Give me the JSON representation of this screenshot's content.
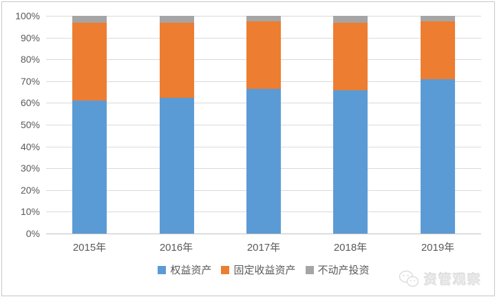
{
  "chart_data": {
    "type": "bar",
    "stacked": true,
    "percent_stacked": true,
    "title": "",
    "xlabel": "",
    "ylabel": "",
    "categories": [
      "2015年",
      "2016年",
      "2017年",
      "2018年",
      "2019年"
    ],
    "series": [
      {
        "name": "权益资产",
        "color": "#5b9bd5",
        "values": [
          61.0,
          62.5,
          66.5,
          66.0,
          71.0
        ]
      },
      {
        "name": "固定收益资产",
        "color": "#ed7d31",
        "values": [
          36.0,
          34.5,
          31.0,
          31.0,
          26.5
        ]
      },
      {
        "name": "不动产投资",
        "color": "#a5a5a5",
        "values": [
          3.0,
          3.0,
          2.5,
          3.0,
          2.5
        ]
      }
    ],
    "y_axis": {
      "min": 0,
      "max": 100,
      "step": 10,
      "tick_labels": [
        "0%",
        "10%",
        "20%",
        "30%",
        "40%",
        "50%",
        "60%",
        "70%",
        "80%",
        "90%",
        "100%"
      ]
    },
    "grid": true,
    "legend_position": "bottom"
  },
  "watermark": {
    "label": "资管观察",
    "icon": "wechat-logo"
  }
}
